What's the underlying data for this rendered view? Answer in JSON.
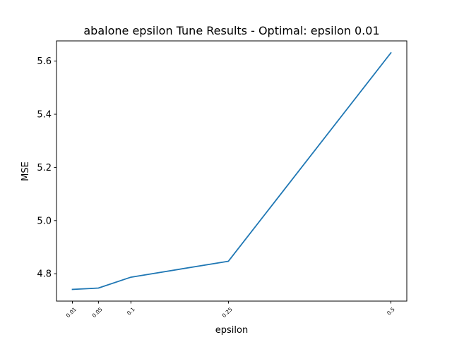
{
  "chart_data": {
    "type": "line",
    "title": "abalone epsilon Tune Results - Optimal: epsilon 0.01",
    "xlabel": "epsilon",
    "ylabel": "MSE",
    "x": [
      0.01,
      0.05,
      0.1,
      0.25,
      0.5
    ],
    "xtick_labels": [
      "0.01",
      "0.05",
      "0.1",
      "0.25",
      "0.5"
    ],
    "series": [
      {
        "name": "MSE",
        "color": "#1f77b4",
        "values": [
          4.741,
          4.746,
          4.787,
          4.847,
          5.631
        ]
      }
    ],
    "xlim": [
      -0.0145,
      0.5245
    ],
    "ylim": [
      4.697,
      5.676
    ],
    "yticks": [
      4.8,
      5.0,
      5.2,
      5.4,
      5.6
    ],
    "ytick_labels": [
      "4.8",
      "5.0",
      "5.2",
      "5.4",
      "5.6"
    ],
    "grid": false,
    "legend": "none"
  }
}
